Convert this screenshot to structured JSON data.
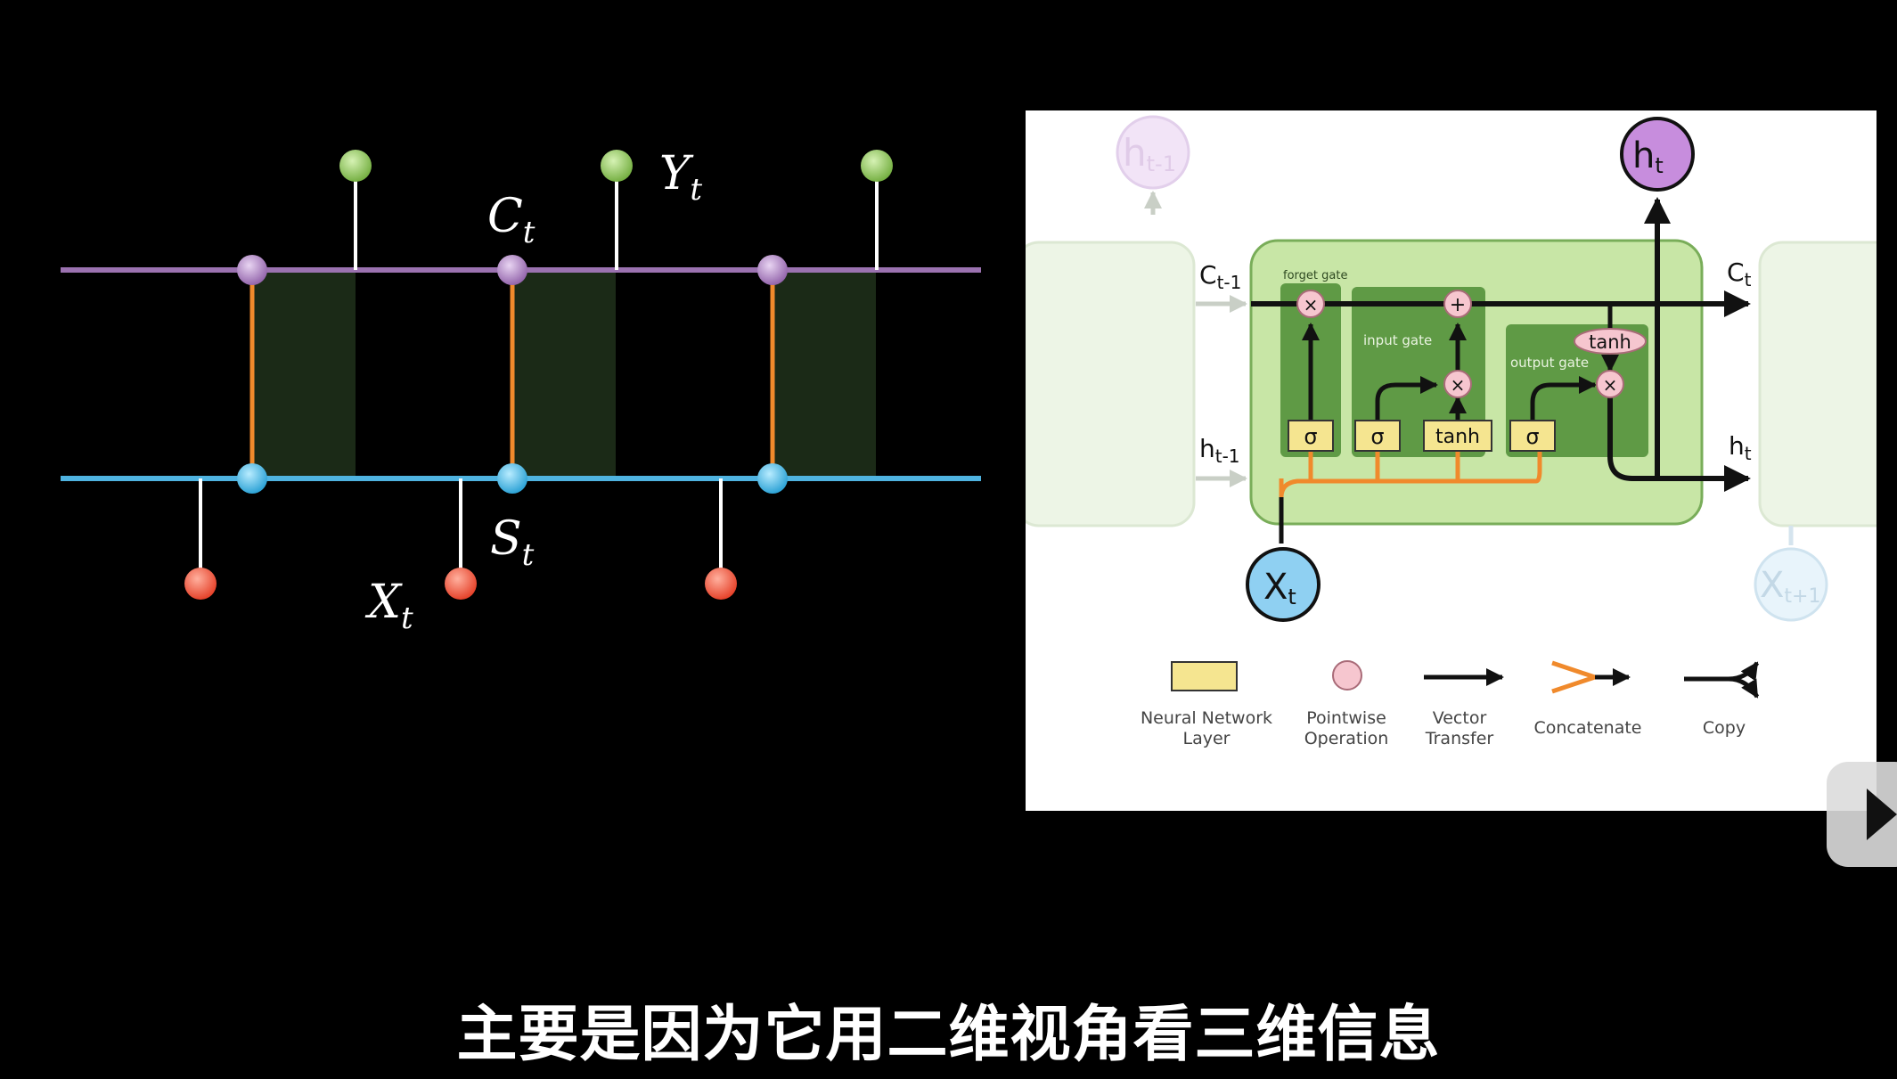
{
  "left_diagram": {
    "label_c": "C",
    "label_c_sub": "t",
    "label_y": "Y",
    "label_y_sub": "t",
    "label_s": "S",
    "label_s_sub": "t",
    "label_x": "X",
    "label_x_sub": "t"
  },
  "lstm_figure": {
    "h_prev_top": "h",
    "h_prev_top_sub": "t-1",
    "h_out": "h",
    "h_out_sub": "t",
    "c_prev": "C",
    "c_prev_sub": "t-1",
    "c_next": "C",
    "c_next_sub": "t",
    "h_prev": "h",
    "h_prev_sub": "t-1",
    "h_next": "h",
    "h_next_sub": "t",
    "x_in": "X",
    "x_in_sub": "t",
    "x_next": "X",
    "x_next_sub": "t+1",
    "forget_gate": "forget gate",
    "input_gate": "input gate",
    "output_gate": "output gate",
    "sigma": "σ",
    "tanh": "tanh",
    "times": "×",
    "plus": "+"
  },
  "legend": {
    "nn_layer_1": "Neural Network",
    "nn_layer_2": "Layer",
    "pointwise_1": "Pointwise",
    "pointwise_2": "Operation",
    "vector_1": "Vector",
    "vector_2": "Transfer",
    "concatenate": "Concatenate",
    "copy": "Copy"
  },
  "subtitle": "主要是因为它用二维视角看三维信息",
  "colors": {
    "purple_line": "#9b72b0",
    "blue_line": "#4fb3e0",
    "orange": "#f08a2c",
    "green_node": "#8cc454",
    "red_node": "#f0553c",
    "cell_fill": "#c8e6a6",
    "cell_border": "#79ad59",
    "gate_fill": "#5f9a45",
    "layer_yellow": "#f5e590",
    "pointwise_pink": "#f6c6cf",
    "h_node": "#c78ddd",
    "x_node": "#8fd0f2"
  }
}
